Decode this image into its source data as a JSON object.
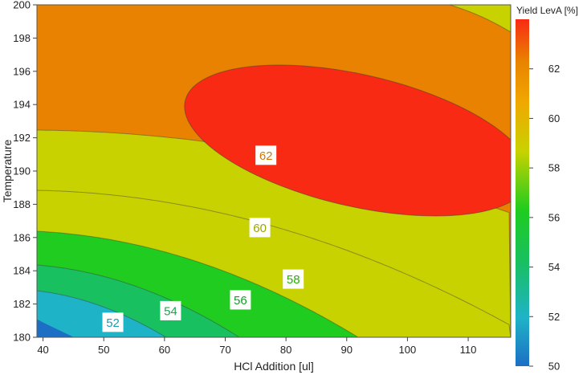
{
  "chart_data": {
    "type": "contour",
    "title": "",
    "xlabel": "HCl Addition [ul]",
    "ylabel": "Temperature",
    "xlim": [
      39,
      117
    ],
    "ylim": [
      180,
      200
    ],
    "x_ticks": [
      40,
      50,
      60,
      70,
      80,
      90,
      100,
      110
    ],
    "y_ticks": [
      180,
      182,
      184,
      186,
      188,
      190,
      192,
      194,
      196,
      198,
      200
    ],
    "colorbar": {
      "title": "Yield LevA [%]",
      "range": [
        50,
        64
      ],
      "ticks": [
        50,
        52,
        54,
        56,
        58,
        60,
        62
      ],
      "colors": [
        "#1c6fc4",
        "#1fb3c8",
        "#18c060",
        "#1fcc1f",
        "#c8d200",
        "#f0a800",
        "#e98200",
        "#f82a14"
      ]
    },
    "levels": [
      50,
      52,
      54,
      56,
      58,
      60,
      62,
      64
    ],
    "contour_labels": [
      {
        "value": "52",
        "x": 51.5,
        "y": 180.9,
        "color": "#1b9bb0"
      },
      {
        "value": "54",
        "x": 61.0,
        "y": 181.6,
        "color": "#1aa84e"
      },
      {
        "value": "56",
        "x": 72.5,
        "y": 182.25,
        "color": "#12a024"
      },
      {
        "value": "58",
        "x": 81.2,
        "y": 183.5,
        "color": "#22b000"
      },
      {
        "value": "60",
        "x": 75.7,
        "y": 186.6,
        "color": "#9ea400"
      },
      {
        "value": "62",
        "x": 76.7,
        "y": 190.95,
        "color": "#d07800"
      }
    ],
    "grid": false,
    "legend": "right"
  }
}
